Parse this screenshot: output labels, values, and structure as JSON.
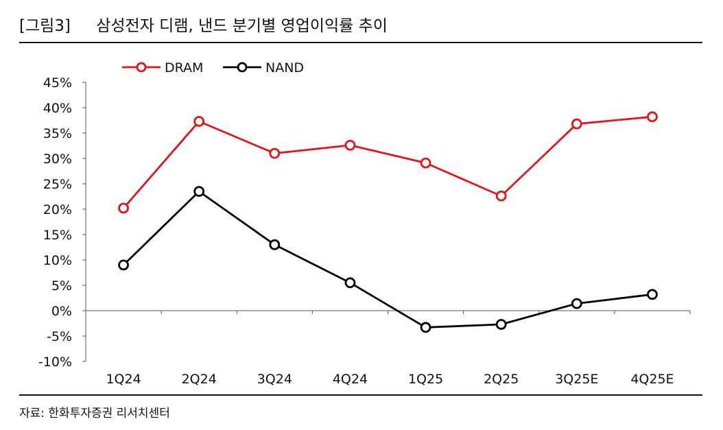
{
  "header": {
    "figure_label": "[그림3]",
    "title": "삼성전자 디램, 낸드 분기별 영업이익률 추이"
  },
  "source": "자료: 한화투자증권 리서치센터",
  "chart_data": {
    "type": "line",
    "categories": [
      "1Q24",
      "2Q24",
      "3Q24",
      "4Q24",
      "1Q25",
      "2Q25",
      "3Q25E",
      "4Q25E"
    ],
    "series": [
      {
        "name": "DRAM",
        "color": "#e3151b",
        "values": [
          20.2,
          37.3,
          31.0,
          32.6,
          29.1,
          22.6,
          36.8,
          38.2
        ]
      },
      {
        "name": "NAND",
        "color": "#000000",
        "values": [
          9.0,
          23.5,
          13.0,
          5.5,
          -3.3,
          -2.7,
          1.4,
          3.2
        ]
      }
    ],
    "ylim": [
      -10,
      45
    ],
    "yticks": [
      -10,
      -5,
      0,
      5,
      10,
      15,
      20,
      25,
      30,
      35,
      40,
      45
    ],
    "ytick_labels": [
      "-10%",
      "-5%",
      "0%",
      "5%",
      "10%",
      "15%",
      "20%",
      "25%",
      "30%",
      "35%",
      "40%",
      "45%"
    ],
    "legend": "top-left",
    "grid": false
  }
}
